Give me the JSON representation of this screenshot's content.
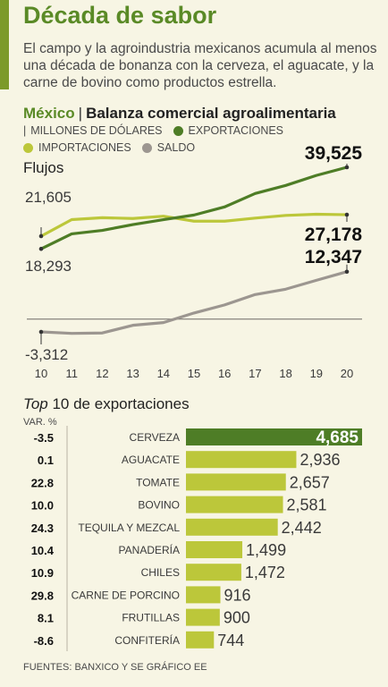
{
  "title": "Década de sabor",
  "subtitle": "El campo y la agroindustria mexicanos acumula al menos una década de bonanza con la cerveza, el aguacate, y la carne de bovino como productos estrella.",
  "section": {
    "country": "México",
    "chart_title": "Balanza comercial agroalimentaria"
  },
  "legend": {
    "unit": "MILLONES DE DÓLARES",
    "exports": "EXPORTACIONES",
    "imports": "IMPORTACIONES",
    "balance": "SALDO"
  },
  "colors": {
    "exports": "#4e7d26",
    "imports": "#bcc73a",
    "balance": "#9c9690",
    "accent": "#7c9a2a",
    "bar_top": "#4e7d26",
    "bar": "#bcc73a"
  },
  "chart_data": [
    {
      "type": "line",
      "title": "Flujos",
      "x": [
        "10",
        "11",
        "12",
        "13",
        "14",
        "15",
        "16",
        "17",
        "18",
        "19",
        "20"
      ],
      "series": [
        {
          "name": "EXPORTACIONES",
          "values": [
            18293,
            22200,
            23100,
            24600,
            25900,
            27100,
            29200,
            32700,
            34800,
            37400,
            39525
          ]
        },
        {
          "name": "IMPORTACIONES",
          "values": [
            21605,
            25900,
            26400,
            26200,
            26800,
            25500,
            25500,
            26300,
            27000,
            27300,
            27178
          ]
        },
        {
          "name": "SALDO",
          "values": [
            -3312,
            -3700,
            -3600,
            -1600,
            -900,
            1600,
            3700,
            6400,
            7800,
            10100,
            12347
          ]
        }
      ],
      "labels": [
        {
          "text": "39,525"
        },
        {
          "text": "21,605"
        },
        {
          "text": "27,178"
        },
        {
          "text": "18,293"
        },
        {
          "text": "12,347"
        },
        {
          "text": "-3,312"
        }
      ]
    },
    {
      "type": "bar",
      "title": "10 de exportaciones",
      "title_italic": "Top",
      "var_label": "VAR. %",
      "categories": [
        "CERVEZA",
        "AGUACATE",
        "TOMATE",
        "BOVINO",
        "TEQUILA Y MEZCAL",
        "PANADERÍA",
        "CHILES",
        "CARNE DE PORCINO",
        "FRUTILLAS",
        "CONFITERÍA"
      ],
      "values": [
        4685,
        2936,
        2657,
        2581,
        2442,
        1499,
        1472,
        916,
        900,
        744
      ],
      "value_labels": [
        "4,685",
        "2,936",
        "2,657",
        "2,581",
        "2,442",
        "1,499",
        "1,472",
        "916",
        "900",
        "744"
      ],
      "var": [
        "-3.5",
        "0.1",
        "22.8",
        "10.0",
        "24.3",
        "10.4",
        "10.9",
        "29.8",
        "8.1",
        "-8.6"
      ]
    }
  ],
  "sources": "FUENTES: BANXICO Y SE   GRÁFICO EE"
}
